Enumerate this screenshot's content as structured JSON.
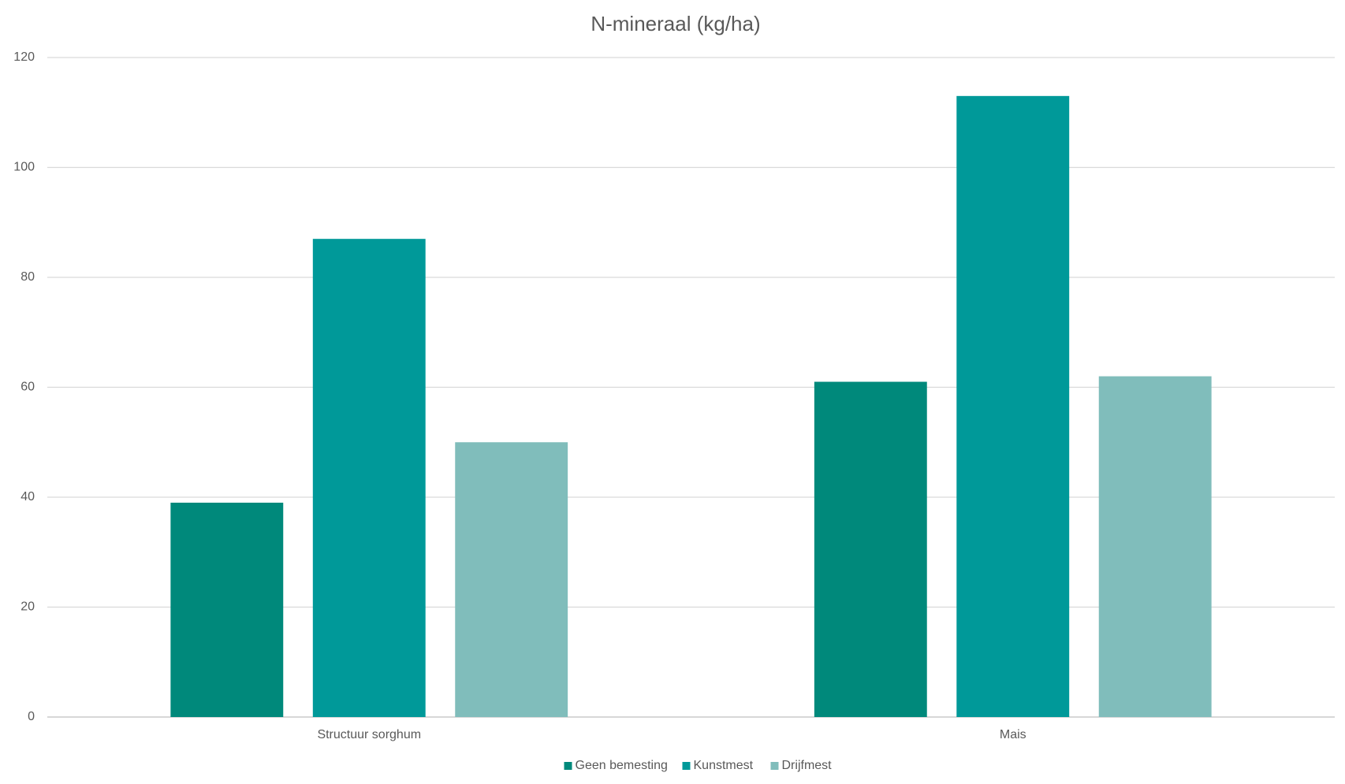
{
  "chart_data": {
    "type": "bar",
    "title": "N-mineraal (kg/ha)",
    "categories": [
      "Structuur sorghum",
      "Mais"
    ],
    "series": [
      {
        "name": "Geen bemesting",
        "color": "#00897b",
        "values": [
          39,
          61
        ]
      },
      {
        "name": "Kunstmest",
        "color": "#009999",
        "values": [
          87,
          113
        ]
      },
      {
        "name": "Drijfmest",
        "color": "#80bdbb",
        "values": [
          50,
          62
        ]
      }
    ],
    "ylim": [
      0,
      120
    ],
    "yticks": [
      0,
      20,
      40,
      60,
      80,
      100,
      120
    ],
    "grid": true,
    "legend": "bottom"
  }
}
